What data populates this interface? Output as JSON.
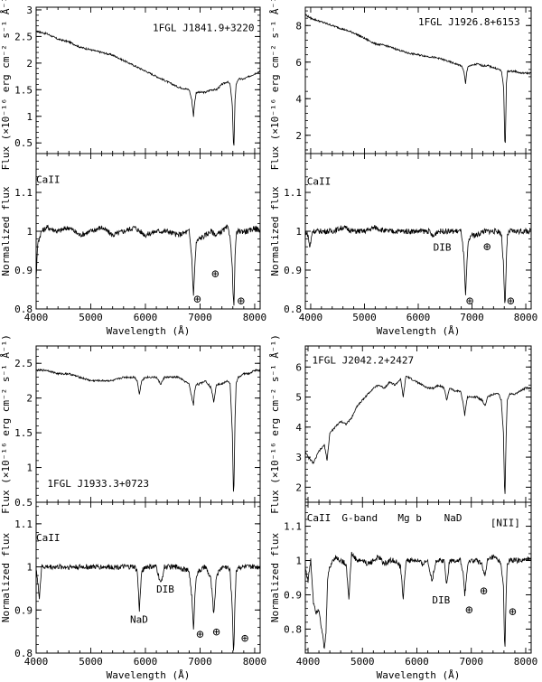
{
  "chart_data": [
    {
      "type": "line",
      "title": "1FGL J1841.9+3220",
      "ylabel": "Flux (×10⁻¹⁶ erg cm⁻² s⁻¹ Å⁻¹)",
      "xlabel": "",
      "xlim": [
        4000,
        8100
      ],
      "ylim": [
        0.3,
        3.05
      ],
      "yticks": [
        0.5,
        1,
        1.5,
        2,
        2.5,
        3
      ],
      "ytick_labels": [
        "0.5",
        "1",
        "1.5",
        "2",
        "2.5",
        "3"
      ],
      "series": [
        {
          "x": [
            3900,
            4000,
            4200,
            4400,
            4600,
            4800,
            5000,
            5200,
            5400,
            5600,
            5800,
            6000,
            6200,
            6400,
            6600,
            6800,
            6850,
            6880,
            6900,
            6930,
            6980,
            7100,
            7200,
            7300,
            7400,
            7500,
            7550,
            7590,
            7610,
            7620,
            7640,
            7660,
            7700,
            7800,
            7900,
            8000,
            8100
          ],
          "y": [
            2.6,
            2.6,
            2.55,
            2.45,
            2.4,
            2.3,
            2.25,
            2.2,
            2.15,
            2.05,
            1.95,
            1.85,
            1.75,
            1.65,
            1.55,
            1.5,
            1.3,
            1.0,
            1.25,
            1.45,
            1.45,
            1.45,
            1.5,
            1.5,
            1.6,
            1.65,
            1.6,
            1.2,
            0.5,
            0.45,
            1.3,
            1.6,
            1.7,
            1.7,
            1.75,
            1.8,
            1.85
          ]
        }
      ]
    },
    {
      "type": "line",
      "title": "",
      "ylabel": "Normalized flux",
      "xlabel": "Wavelength (Å)",
      "xlim": [
        4000,
        8100
      ],
      "ylim": [
        0.8,
        1.2
      ],
      "xticks": [
        4000,
        5000,
        6000,
        7000,
        8000
      ],
      "xtick_labels": [
        "4000",
        "5000",
        "6000",
        "7000",
        "8000"
      ],
      "yticks": [
        0.8,
        0.9,
        1,
        1.1
      ],
      "ytick_labels": [
        "0.8",
        "0.9",
        "1",
        "1.1"
      ],
      "annotations": [
        {
          "text": "CaII",
          "x": 4000,
          "y": 1.125
        },
        {
          "text": "⊕",
          "x": 6950,
          "y": 0.815
        },
        {
          "text": "⊕",
          "x": 7280,
          "y": 0.88
        },
        {
          "text": "⊕",
          "x": 7750,
          "y": 0.81
        }
      ],
      "series": [
        {
          "x": [
            3900,
            3950,
            3980,
            4000,
            4030,
            4100,
            4200,
            4400,
            4600,
            4800,
            5000,
            5200,
            5400,
            5600,
            5800,
            6000,
            6200,
            6400,
            6600,
            6800,
            6850,
            6880,
            6900,
            6930,
            6980,
            7100,
            7200,
            7300,
            7400,
            7500,
            7550,
            7590,
            7610,
            7620,
            7640,
            7660,
            7700,
            7800,
            7900,
            8000,
            8100
          ],
          "y": [
            1.0,
            0.98,
            0.92,
            0.88,
            0.97,
            1.0,
            1.01,
            1.0,
            1.01,
            0.99,
            1.0,
            1.01,
            0.99,
            1.0,
            1.01,
            0.99,
            1.0,
            1.0,
            0.99,
            1.0,
            0.93,
            0.83,
            0.9,
            0.97,
            0.98,
            0.99,
            1.0,
            0.99,
            1.0,
            1.01,
            0.99,
            0.9,
            0.82,
            0.81,
            0.93,
            0.99,
            1.0,
            1.0,
            1.0,
            1.01,
            1.0
          ]
        }
      ]
    },
    {
      "type": "line",
      "title": "1FGL J1926.8+6153",
      "ylabel": "Flux (×10⁻¹⁶ erg cm⁻² s⁻¹ Å⁻¹)",
      "xlabel": "",
      "xlim": [
        3900,
        8100
      ],
      "ylim": [
        1.0,
        9.0
      ],
      "yticks": [
        2,
        4,
        6,
        8
      ],
      "ytick_labels": [
        "2",
        "4",
        "6",
        "8"
      ],
      "series": [
        {
          "x": [
            3900,
            4000,
            4200,
            4400,
            4600,
            4800,
            5000,
            5200,
            5400,
            5600,
            5800,
            6000,
            6200,
            6400,
            6600,
            6800,
            6850,
            6880,
            6900,
            6930,
            6980,
            7100,
            7200,
            7300,
            7400,
            7500,
            7550,
            7590,
            7610,
            7620,
            7640,
            7660,
            7700,
            7800,
            7900,
            8000,
            8100
          ],
          "y": [
            8.6,
            8.4,
            8.2,
            8.0,
            7.8,
            7.6,
            7.3,
            7.0,
            6.9,
            6.7,
            6.5,
            6.4,
            6.3,
            6.2,
            6.0,
            5.8,
            5.5,
            4.8,
            5.4,
            5.8,
            5.8,
            5.9,
            5.8,
            5.8,
            5.7,
            5.6,
            5.5,
            4.5,
            1.7,
            1.6,
            4.8,
            5.5,
            5.5,
            5.5,
            5.4,
            5.4,
            5.4
          ]
        }
      ]
    },
    {
      "type": "line",
      "title": "",
      "ylabel": "Normalized flux",
      "xlabel": "Wavelength (Å)",
      "xlim": [
        3900,
        8100
      ],
      "ylim": [
        0.8,
        1.2
      ],
      "xticks": [
        4000,
        5000,
        6000,
        7000,
        8000
      ],
      "xtick_labels": [
        "4000",
        "5000",
        "6000",
        "7000",
        "8000"
      ],
      "yticks": [
        0.8,
        0.9,
        1,
        1.1
      ],
      "ytick_labels": [
        "0.8",
        "0.9",
        "1",
        "1.1"
      ],
      "annotations": [
        {
          "text": "CaII",
          "x": 3930,
          "y": 1.12
        },
        {
          "text": "DIB",
          "x": 6280,
          "y": 0.95
        },
        {
          "text": "⊕",
          "x": 7280,
          "y": 0.95
        },
        {
          "text": "⊕",
          "x": 6960,
          "y": 0.81
        },
        {
          "text": "⊕",
          "x": 7720,
          "y": 0.81
        }
      ],
      "series": [
        {
          "x": [
            3900,
            3950,
            3980,
            4000,
            4030,
            4100,
            4200,
            4400,
            4600,
            4800,
            5000,
            5200,
            5400,
            5600,
            5800,
            6000,
            6200,
            6280,
            6350,
            6400,
            6600,
            6800,
            6850,
            6880,
            6900,
            6930,
            6980,
            7100,
            7200,
            7300,
            7400,
            7500,
            7550,
            7590,
            7610,
            7620,
            7640,
            7660,
            7700,
            7800,
            7900,
            8000,
            8100
          ],
          "y": [
            1.0,
            0.99,
            0.96,
            0.97,
            1.0,
            1.0,
            1.0,
            1.0,
            1.01,
            1.0,
            1.0,
            1.01,
            1.0,
            1.0,
            1.0,
            1.0,
            1.0,
            0.985,
            1.0,
            1.0,
            1.0,
            1.0,
            0.93,
            0.83,
            0.9,
            0.97,
            0.99,
            0.99,
            1.0,
            1.0,
            1.0,
            1.0,
            0.99,
            0.9,
            0.81,
            0.82,
            0.93,
            0.99,
            1.0,
            1.0,
            1.0,
            1.0,
            1.0
          ]
        }
      ]
    },
    {
      "type": "line",
      "title": "1FGL J1933.3+0723",
      "ylabel": "Flux (×10⁻¹⁶ erg cm⁻² s⁻¹ Å⁻¹)",
      "xlabel": "",
      "xlim": [
        4000,
        8100
      ],
      "ylim": [
        0.5,
        2.75
      ],
      "yticks": [
        0.5,
        1,
        1.5,
        2,
        2.5
      ],
      "ytick_labels": [
        "0.5",
        "1",
        "1.5",
        "2",
        "2.5"
      ],
      "series": [
        {
          "x": [
            4000,
            4200,
            4400,
            4600,
            4800,
            5000,
            5200,
            5400,
            5600,
            5800,
            5850,
            5890,
            5930,
            6000,
            6200,
            6280,
            6350,
            6400,
            6600,
            6800,
            6850,
            6880,
            6900,
            6930,
            6980,
            7100,
            7200,
            7250,
            7300,
            7400,
            7500,
            7550,
            7590,
            7610,
            7620,
            7640,
            7660,
            7700,
            7800,
            7900,
            8000,
            8100
          ],
          "y": [
            2.4,
            2.4,
            2.35,
            2.35,
            2.3,
            2.25,
            2.25,
            2.25,
            2.3,
            2.3,
            2.25,
            2.05,
            2.25,
            2.3,
            2.3,
            2.2,
            2.3,
            2.3,
            2.3,
            2.2,
            2.0,
            1.9,
            2.1,
            2.2,
            2.2,
            2.25,
            2.15,
            1.95,
            2.2,
            2.2,
            2.25,
            2.2,
            1.5,
            0.65,
            0.75,
            1.7,
            2.2,
            2.3,
            2.35,
            2.35,
            2.4,
            2.4
          ]
        }
      ]
    },
    {
      "type": "line",
      "title": "",
      "ylabel": "Normalized flux",
      "xlabel": "Wavelength (Å)",
      "xlim": [
        4000,
        8100
      ],
      "ylim": [
        0.8,
        1.15
      ],
      "xticks": [
        4000,
        5000,
        6000,
        7000,
        8000
      ],
      "xtick_labels": [
        "4000",
        "5000",
        "6000",
        "7000",
        "8000"
      ],
      "yticks": [
        0.8,
        0.9,
        1,
        1.1
      ],
      "ytick_labels": [
        "0.8",
        "0.9",
        "1",
        "1.1"
      ],
      "annotations": [
        {
          "text": "CaII",
          "x": 4000,
          "y": 1.06
        },
        {
          "text": "DIB",
          "x": 6200,
          "y": 0.94
        },
        {
          "text": "NaD",
          "x": 5720,
          "y": 0.87
        },
        {
          "text": "⊕",
          "x": 7000,
          "y": 0.835
        },
        {
          "text": "⊕",
          "x": 7300,
          "y": 0.84
        },
        {
          "text": "⊕",
          "x": 7820,
          "y": 0.825
        }
      ],
      "series": [
        {
          "x": [
            4000,
            4030,
            4060,
            4100,
            4200,
            4400,
            4600,
            4800,
            5000,
            5200,
            5400,
            5600,
            5800,
            5850,
            5890,
            5930,
            6000,
            6200,
            6280,
            6350,
            6400,
            6600,
            6800,
            6850,
            6880,
            6900,
            6930,
            6980,
            7100,
            7200,
            7250,
            7300,
            7400,
            7500,
            7550,
            7590,
            7610,
            7620,
            7640,
            7660,
            7700,
            7800,
            7900,
            8000,
            8100
          ],
          "y": [
            1.0,
            0.96,
            0.93,
            1.0,
            1.0,
            1.0,
            1.0,
            1.0,
            1.0,
            1.0,
            1.0,
            1.0,
            1.0,
            0.99,
            0.9,
            0.99,
            1.0,
            1.0,
            0.96,
            1.0,
            1.0,
            1.0,
            0.99,
            0.93,
            0.85,
            0.92,
            0.98,
            0.99,
            1.0,
            0.97,
            0.89,
            0.98,
            1.0,
            1.0,
            0.99,
            0.9,
            0.81,
            0.82,
            0.92,
            0.99,
            1.0,
            1.0,
            1.0,
            1.0,
            1.0
          ]
        }
      ]
    },
    {
      "type": "line",
      "title": "1FGL J2042.2+2427",
      "ylabel": "Flux (×10⁻¹⁶ erg cm⁻² s⁻¹ Å⁻¹)",
      "xlabel": "",
      "xlim": [
        3950,
        8100
      ],
      "ylim": [
        1.5,
        6.7
      ],
      "yticks": [
        2,
        3,
        4,
        5,
        6
      ],
      "ytick_labels": [
        "2",
        "3",
        "4",
        "5",
        "6"
      ],
      "series": [
        {
          "x": [
            3950,
            4000,
            4100,
            4200,
            4300,
            4350,
            4400,
            4500,
            4600,
            4700,
            4800,
            4900,
            5000,
            5100,
            5200,
            5300,
            5400,
            5500,
            5600,
            5700,
            5750,
            5800,
            5900,
            6000,
            6100,
            6200,
            6300,
            6400,
            6500,
            6550,
            6600,
            6700,
            6800,
            6850,
            6880,
            6900,
            6930,
            6980,
            7100,
            7200,
            7250,
            7300,
            7400,
            7500,
            7550,
            7590,
            7610,
            7620,
            7640,
            7660,
            7700,
            7800,
            7900,
            8000,
            8100
          ],
          "y": [
            3.2,
            3.0,
            2.8,
            3.2,
            3.4,
            2.9,
            3.8,
            4.0,
            4.2,
            4.1,
            4.3,
            4.7,
            4.9,
            5.1,
            5.3,
            5.4,
            5.3,
            5.5,
            5.4,
            5.6,
            5.0,
            5.7,
            5.6,
            5.5,
            5.4,
            5.3,
            5.3,
            5.4,
            5.3,
            4.9,
            5.3,
            5.2,
            5.2,
            4.8,
            4.4,
            4.7,
            5.0,
            5.0,
            5.0,
            4.9,
            4.7,
            5.0,
            5.1,
            5.1,
            4.9,
            3.8,
            2.0,
            1.8,
            3.7,
            4.9,
            5.1,
            5.1,
            5.2,
            5.3,
            5.3
          ]
        }
      ]
    },
    {
      "type": "line",
      "title": "",
      "ylabel": "Normalized flux",
      "xlabel": "Wavelength (Å)",
      "xlim": [
        3950,
        8100
      ],
      "ylim": [
        0.73,
        1.17
      ],
      "xticks": [
        4000,
        5000,
        6000,
        7000,
        8000
      ],
      "xtick_labels": [
        "4000",
        "5000",
        "6000",
        "7000",
        "8000"
      ],
      "yticks": [
        0.8,
        0.9,
        1,
        1.1
      ],
      "ytick_labels": [
        "0.8",
        "0.9",
        "1",
        "1.1"
      ],
      "annotations": [
        {
          "text": "CaII",
          "x": 3980,
          "y": 1.115
        },
        {
          "text": "G-band",
          "x": 4620,
          "y": 1.115
        },
        {
          "text": "Mg b",
          "x": 5650,
          "y": 1.115
        },
        {
          "text": "NaD",
          "x": 6500,
          "y": 1.115
        },
        {
          "text": "[NII]",
          "x": 7350,
          "y": 1.1
        },
        {
          "text": "DIB",
          "x": 6280,
          "y": 0.875
        },
        {
          "text": "⊕",
          "x": 7230,
          "y": 0.9
        },
        {
          "text": "⊕",
          "x": 6960,
          "y": 0.845
        },
        {
          "text": "⊕",
          "x": 7760,
          "y": 0.84
        }
      ],
      "series": [
        {
          "x": [
            3950,
            4000,
            4050,
            4100,
            4150,
            4200,
            4250,
            4300,
            4330,
            4360,
            4400,
            4450,
            4500,
            4600,
            4700,
            4750,
            4800,
            4900,
            5000,
            5100,
            5200,
            5300,
            5400,
            5500,
            5600,
            5700,
            5750,
            5800,
            5900,
            6000,
            6100,
            6200,
            6280,
            6350,
            6400,
            6500,
            6550,
            6600,
            6700,
            6800,
            6850,
            6880,
            6900,
            6930,
            6980,
            7100,
            7200,
            7250,
            7300,
            7400,
            7500,
            7550,
            7590,
            7610,
            7620,
            7640,
            7660,
            7700,
            7800,
            7900,
            8000,
            8100
          ],
          "y": [
            0.98,
            0.94,
            1.0,
            0.88,
            0.85,
            0.86,
            0.8,
            0.74,
            0.79,
            0.95,
            0.98,
            1.0,
            1.01,
            1.0,
            0.99,
            0.89,
            1.02,
            1.0,
            1.0,
            0.99,
            1.0,
            1.01,
            0.99,
            1.0,
            1.0,
            0.98,
            0.89,
            1.0,
            1.0,
            1.0,
            0.99,
            1.0,
            0.94,
            1.0,
            1.0,
            1.0,
            0.93,
            1.0,
            1.0,
            1.0,
            0.96,
            0.9,
            0.93,
            0.98,
            1.0,
            1.0,
            0.99,
            0.95,
            1.0,
            1.01,
            1.0,
            0.99,
            0.92,
            0.76,
            0.75,
            0.9,
            0.99,
            1.0,
            1.0,
            1.0,
            1.0,
            1.01
          ]
        }
      ]
    }
  ]
}
